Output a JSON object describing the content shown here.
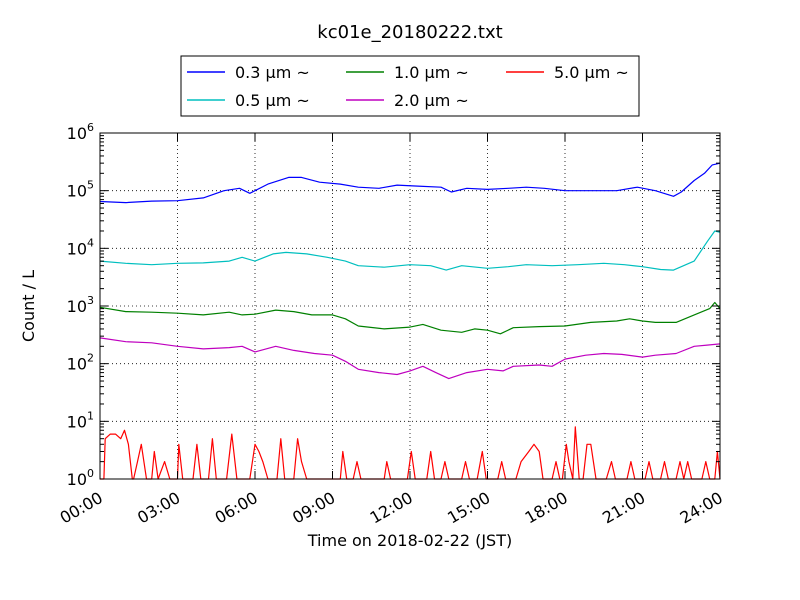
{
  "chart_data": {
    "type": "line",
    "title": "kc01e_20180222.txt",
    "xlabel": "Time on 2018-02-22 (JST)",
    "ylabel": "Count / L",
    "yscale": "log",
    "ylim": [
      1,
      1000000
    ],
    "y_ticks": [
      {
        "value": 1,
        "base": "10",
        "exp": "0"
      },
      {
        "value": 10,
        "base": "10",
        "exp": "1"
      },
      {
        "value": 100,
        "base": "10",
        "exp": "2"
      },
      {
        "value": 1000,
        "base": "10",
        "exp": "3"
      },
      {
        "value": 10000,
        "base": "10",
        "exp": "4"
      },
      {
        "value": 100000,
        "base": "10",
        "exp": "5"
      },
      {
        "value": 1000000,
        "base": "10",
        "exp": "6"
      }
    ],
    "x_ticks": [
      {
        "hour": 0,
        "label": "00:00"
      },
      {
        "hour": 3,
        "label": "03:00"
      },
      {
        "hour": 6,
        "label": "06:00"
      },
      {
        "hour": 9,
        "label": "09:00"
      },
      {
        "hour": 12,
        "label": "12:00"
      },
      {
        "hour": 15,
        "label": "15:00"
      },
      {
        "hour": 18,
        "label": "18:00"
      },
      {
        "hour": 21,
        "label": "21:00"
      },
      {
        "hour": 24,
        "label": "24:00"
      }
    ],
    "xlim": [
      0,
      24
    ],
    "grid": true,
    "legend_position": "top-center",
    "series": [
      {
        "name": "0.3 μm ~",
        "color": "#0000ff",
        "points": [
          [
            0,
            65000
          ],
          [
            1,
            62000
          ],
          [
            2,
            66000
          ],
          [
            3,
            67000
          ],
          [
            4,
            75000
          ],
          [
            4.8,
            100000
          ],
          [
            5.4,
            110000
          ],
          [
            5.8,
            90000
          ],
          [
            6.5,
            130000
          ],
          [
            7.3,
            170000
          ],
          [
            7.8,
            170000
          ],
          [
            8.5,
            140000
          ],
          [
            9.3,
            130000
          ],
          [
            10,
            115000
          ],
          [
            10.8,
            110000
          ],
          [
            11.5,
            125000
          ],
          [
            12.3,
            120000
          ],
          [
            13.2,
            115000
          ],
          [
            13.6,
            95000
          ],
          [
            14.2,
            110000
          ],
          [
            15,
            105000
          ],
          [
            15.8,
            110000
          ],
          [
            16.5,
            115000
          ],
          [
            17.2,
            110000
          ],
          [
            18,
            100000
          ],
          [
            19,
            100000
          ],
          [
            20,
            100000
          ],
          [
            20.8,
            115000
          ],
          [
            21.5,
            100000
          ],
          [
            22.2,
            80000
          ],
          [
            22.5,
            95000
          ],
          [
            23,
            150000
          ],
          [
            23.4,
            200000
          ],
          [
            23.7,
            280000
          ],
          [
            24,
            300000
          ]
        ]
      },
      {
        "name": "0.5 μm ~",
        "color": "#00bfbf",
        "points": [
          [
            0,
            6000
          ],
          [
            1,
            5500
          ],
          [
            2,
            5200
          ],
          [
            3,
            5500
          ],
          [
            4,
            5600
          ],
          [
            5,
            6000
          ],
          [
            5.5,
            7000
          ],
          [
            6,
            6000
          ],
          [
            6.7,
            8000
          ],
          [
            7.2,
            8500
          ],
          [
            8,
            8000
          ],
          [
            8.8,
            7000
          ],
          [
            9.5,
            6000
          ],
          [
            10,
            5000
          ],
          [
            11,
            4700
          ],
          [
            12,
            5200
          ],
          [
            12.8,
            5000
          ],
          [
            13.4,
            4200
          ],
          [
            14,
            5000
          ],
          [
            15,
            4500
          ],
          [
            15.8,
            4800
          ],
          [
            16.5,
            5200
          ],
          [
            17.5,
            5000
          ],
          [
            18.5,
            5200
          ],
          [
            19.5,
            5500
          ],
          [
            20.3,
            5200
          ],
          [
            21,
            4800
          ],
          [
            21.7,
            4300
          ],
          [
            22.2,
            4200
          ],
          [
            23,
            6000
          ],
          [
            23.5,
            13000
          ],
          [
            23.8,
            20000
          ],
          [
            24,
            19000
          ]
        ]
      },
      {
        "name": "1.0 μm ~",
        "color": "#008000",
        "points": [
          [
            0,
            950
          ],
          [
            1,
            800
          ],
          [
            2,
            780
          ],
          [
            3,
            750
          ],
          [
            4,
            700
          ],
          [
            5,
            780
          ],
          [
            5.5,
            700
          ],
          [
            6,
            720
          ],
          [
            6.8,
            850
          ],
          [
            7.5,
            800
          ],
          [
            8.2,
            700
          ],
          [
            9,
            700
          ],
          [
            9.5,
            600
          ],
          [
            10,
            450
          ],
          [
            11,
            400
          ],
          [
            12,
            430
          ],
          [
            12.5,
            480
          ],
          [
            13.2,
            380
          ],
          [
            14,
            350
          ],
          [
            14.5,
            400
          ],
          [
            15,
            380
          ],
          [
            15.5,
            330
          ],
          [
            16,
            420
          ],
          [
            17,
            440
          ],
          [
            18,
            450
          ],
          [
            19,
            520
          ],
          [
            20,
            550
          ],
          [
            20.5,
            600
          ],
          [
            21,
            550
          ],
          [
            21.5,
            520
          ],
          [
            22.3,
            520
          ],
          [
            23,
            700
          ],
          [
            23.6,
            900
          ],
          [
            23.8,
            1150
          ],
          [
            24,
            900
          ]
        ]
      },
      {
        "name": "2.0 μm ~",
        "color": "#bf00bf",
        "points": [
          [
            0,
            280
          ],
          [
            1,
            240
          ],
          [
            2,
            230
          ],
          [
            3,
            200
          ],
          [
            4,
            180
          ],
          [
            5,
            190
          ],
          [
            5.5,
            200
          ],
          [
            6,
            160
          ],
          [
            6.8,
            200
          ],
          [
            7.5,
            170
          ],
          [
            8.3,
            150
          ],
          [
            9,
            140
          ],
          [
            9.5,
            110
          ],
          [
            10,
            80
          ],
          [
            10.8,
            70
          ],
          [
            11.5,
            65
          ],
          [
            12,
            75
          ],
          [
            12.5,
            90
          ],
          [
            13,
            70
          ],
          [
            13.5,
            55
          ],
          [
            14.2,
            70
          ],
          [
            15,
            80
          ],
          [
            15.6,
            75
          ],
          [
            16,
            90
          ],
          [
            17,
            95
          ],
          [
            17.5,
            90
          ],
          [
            18,
            120
          ],
          [
            18.8,
            140
          ],
          [
            19.5,
            150
          ],
          [
            20.2,
            145
          ],
          [
            21,
            130
          ],
          [
            21.5,
            140
          ],
          [
            22.3,
            150
          ],
          [
            23,
            200
          ],
          [
            23.5,
            210
          ],
          [
            24,
            220
          ]
        ]
      },
      {
        "name": "5.0 μm ~",
        "color": "#ff0000",
        "points": [
          [
            0,
            1
          ],
          [
            0.15,
            1
          ],
          [
            0.2,
            5
          ],
          [
            0.4,
            6
          ],
          [
            0.6,
            6
          ],
          [
            0.8,
            5
          ],
          [
            0.95,
            7
          ],
          [
            1.1,
            4
          ],
          [
            1.25,
            1
          ],
          [
            1.3,
            1
          ],
          [
            1.45,
            2
          ],
          [
            1.6,
            4
          ],
          [
            1.8,
            1
          ],
          [
            2,
            1
          ],
          [
            2.1,
            3
          ],
          [
            2.25,
            1
          ],
          [
            2.5,
            2
          ],
          [
            2.7,
            1
          ],
          [
            3,
            1
          ],
          [
            3.05,
            4
          ],
          [
            3.2,
            1
          ],
          [
            3.6,
            1
          ],
          [
            3.75,
            4
          ],
          [
            3.9,
            1
          ],
          [
            4.2,
            1
          ],
          [
            4.35,
            5
          ],
          [
            4.5,
            1
          ],
          [
            4.9,
            1
          ],
          [
            5.1,
            6
          ],
          [
            5.3,
            1
          ],
          [
            5.8,
            1
          ],
          [
            6,
            4
          ],
          [
            6.15,
            3
          ],
          [
            6.3,
            2
          ],
          [
            6.5,
            1
          ],
          [
            6.85,
            1
          ],
          [
            7,
            5
          ],
          [
            7.15,
            1
          ],
          [
            7.5,
            1
          ],
          [
            7.65,
            5
          ],
          [
            7.8,
            2
          ],
          [
            8,
            1
          ],
          [
            9.3,
            1
          ],
          [
            9.4,
            3
          ],
          [
            9.55,
            1
          ],
          [
            9.8,
            1
          ],
          [
            9.95,
            2
          ],
          [
            10.1,
            1
          ],
          [
            11,
            1
          ],
          [
            11.1,
            2
          ],
          [
            11.25,
            1
          ],
          [
            11.9,
            1
          ],
          [
            12.05,
            3
          ],
          [
            12.2,
            1
          ],
          [
            12.65,
            1
          ],
          [
            12.8,
            3
          ],
          [
            12.95,
            1
          ],
          [
            13.2,
            1
          ],
          [
            13.35,
            2
          ],
          [
            13.5,
            1
          ],
          [
            14,
            1
          ],
          [
            14.15,
            2
          ],
          [
            14.3,
            1
          ],
          [
            14.6,
            1
          ],
          [
            14.8,
            3
          ],
          [
            14.95,
            1
          ],
          [
            15.4,
            1
          ],
          [
            15.55,
            2
          ],
          [
            15.7,
            1
          ],
          [
            16.1,
            1
          ],
          [
            16.3,
            2
          ],
          [
            16.6,
            3
          ],
          [
            16.8,
            4
          ],
          [
            17,
            3
          ],
          [
            17.15,
            1
          ],
          [
            17.5,
            1
          ],
          [
            17.65,
            2
          ],
          [
            17.8,
            1
          ],
          [
            17.9,
            1
          ],
          [
            18.05,
            4
          ],
          [
            18.15,
            2
          ],
          [
            18.3,
            1
          ],
          [
            18.4,
            8
          ],
          [
            18.55,
            1
          ],
          [
            18.7,
            1
          ],
          [
            18.85,
            4
          ],
          [
            19,
            4
          ],
          [
            19.2,
            1
          ],
          [
            19.6,
            1
          ],
          [
            19.8,
            2
          ],
          [
            19.95,
            1
          ],
          [
            20.4,
            1
          ],
          [
            20.55,
            2
          ],
          [
            20.7,
            1
          ],
          [
            21.1,
            1
          ],
          [
            21.25,
            2
          ],
          [
            21.4,
            1
          ],
          [
            21.7,
            1
          ],
          [
            21.85,
            2
          ],
          [
            22,
            1
          ],
          [
            22.3,
            1
          ],
          [
            22.45,
            2
          ],
          [
            22.6,
            1
          ],
          [
            22.75,
            2
          ],
          [
            22.9,
            1
          ],
          [
            23.3,
            1
          ],
          [
            23.45,
            2
          ],
          [
            23.6,
            1
          ],
          [
            23.8,
            1
          ],
          [
            23.9,
            3
          ],
          [
            24,
            1
          ]
        ]
      }
    ]
  }
}
